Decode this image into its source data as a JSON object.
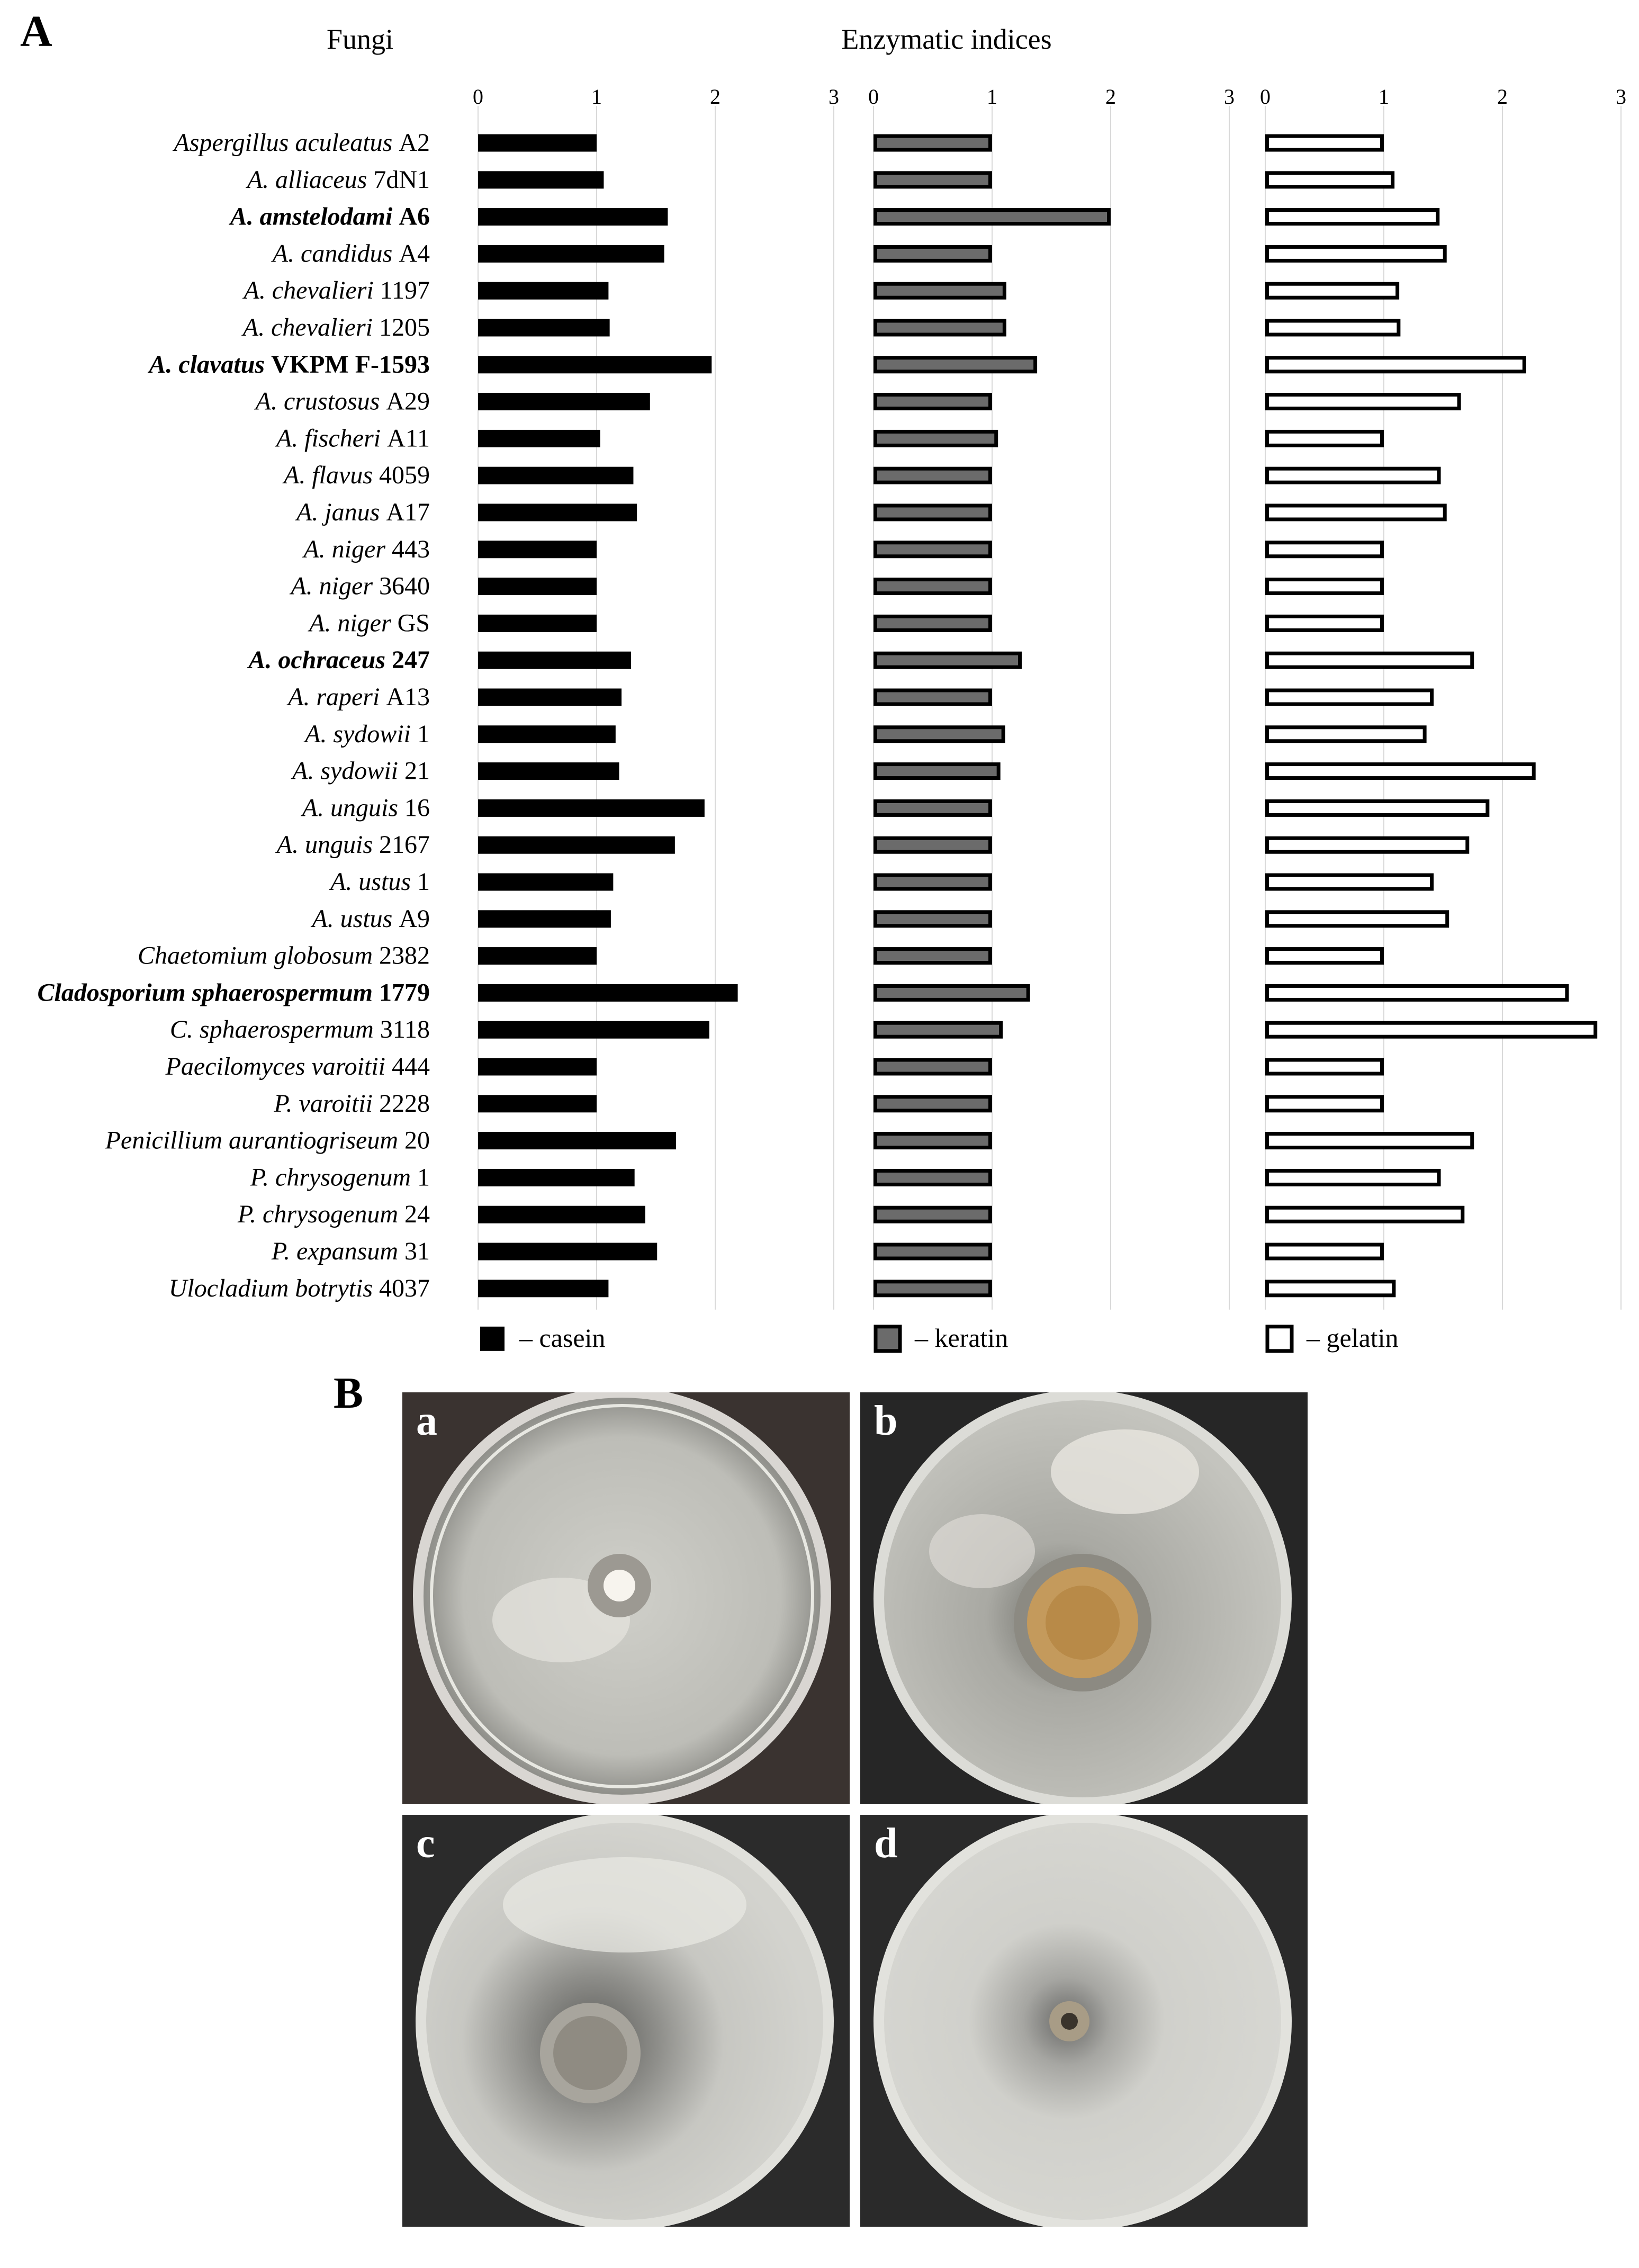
{
  "panel_a_label": "A",
  "panel_b_label": "B",
  "chart_data": {
    "type": "bar",
    "header_left": "Fungi",
    "header_center": "Enzymatic indices",
    "xlim": [
      0,
      3
    ],
    "x_ticks": [
      "0",
      "1",
      "2",
      "3"
    ],
    "grid": "vertical",
    "categories": [
      {
        "italic": "Aspergillus aculeatus",
        "strain": "A2",
        "bold": false
      },
      {
        "italic": "A. alliaceus",
        "strain": "7dN1",
        "bold": false
      },
      {
        "italic": "A. amstelodami",
        "strain": "A6",
        "bold": true
      },
      {
        "italic": "A. candidus",
        "strain": "A4",
        "bold": false
      },
      {
        "italic": "A. chevalieri",
        "strain": "1197",
        "bold": false
      },
      {
        "italic": "A. chevalieri",
        "strain": "1205",
        "bold": false
      },
      {
        "italic": "A. clavatus",
        "strain": "VKPM F-1593",
        "bold": true
      },
      {
        "italic": "A. crustosus",
        "strain": "A29",
        "bold": false
      },
      {
        "italic": "A. fischeri",
        "strain": "A11",
        "bold": false
      },
      {
        "italic": "A. flavus",
        "strain": "4059",
        "bold": false
      },
      {
        "italic": "A. janus",
        "strain": "A17",
        "bold": false
      },
      {
        "italic": "A. niger",
        "strain": "443",
        "bold": false
      },
      {
        "italic": "A. niger",
        "strain": "3640",
        "bold": false
      },
      {
        "italic": "A. niger",
        "strain": "GS",
        "bold": false
      },
      {
        "italic": "A. ochraceus",
        "strain": "247",
        "bold": true
      },
      {
        "italic": "A. raperi",
        "strain": "A13",
        "bold": false
      },
      {
        "italic": "A. sydowii",
        "strain": "1",
        "bold": false
      },
      {
        "italic": "A. sydowii",
        "strain": "21",
        "bold": false
      },
      {
        "italic": "A. unguis",
        "strain": "16",
        "bold": false
      },
      {
        "italic": "A. unguis",
        "strain": "2167",
        "bold": false
      },
      {
        "italic": "A. ustus",
        "strain": "1",
        "bold": false
      },
      {
        "italic": "A. ustus",
        "strain": "A9",
        "bold": false
      },
      {
        "italic": "Chaetomium globosum",
        "strain": "2382",
        "bold": false
      },
      {
        "italic": "Cladosporium sphaerospermum",
        "strain": "1779",
        "bold": true
      },
      {
        "italic": "C. sphaerospermum",
        "strain": "3118",
        "bold": false
      },
      {
        "italic": "Paecilomyces varoitii",
        "strain": "444",
        "bold": false
      },
      {
        "italic": "P. varoitii",
        "strain": "2228",
        "bold": false
      },
      {
        "italic": "Penicillium aurantiogriseum",
        "strain": "20",
        "bold": false
      },
      {
        "italic": "P. chrysogenum",
        "strain": "1",
        "bold": false
      },
      {
        "italic": "P. chrysogenum",
        "strain": "24",
        "bold": false
      },
      {
        "italic": "P. expansum",
        "strain": "31",
        "bold": false
      },
      {
        "italic": "Ulocladium botrytis",
        "strain": "4037",
        "bold": false
      }
    ],
    "series": [
      {
        "name": "casein",
        "legend_label": "– casein",
        "fill": "#000000",
        "stroke": "#000000",
        "values": [
          1.0,
          1.06,
          1.6,
          1.57,
          1.1,
          1.11,
          1.97,
          1.45,
          1.03,
          1.31,
          1.34,
          1.0,
          1.0,
          1.0,
          1.29,
          1.21,
          1.16,
          1.19,
          1.91,
          1.66,
          1.14,
          1.12,
          1.0,
          2.19,
          1.95,
          1.0,
          1.0,
          1.67,
          1.32,
          1.41,
          1.51,
          1.1
        ]
      },
      {
        "name": "keratin",
        "legend_label": "– keratin",
        "fill": "#6b6b6b",
        "stroke": "#000000",
        "values": [
          1.0,
          1.0,
          2.0,
          1.0,
          1.12,
          1.12,
          1.38,
          1.0,
          1.05,
          1.0,
          1.0,
          1.0,
          1.0,
          1.0,
          1.25,
          1.0,
          1.11,
          1.07,
          1.0,
          1.0,
          1.0,
          1.0,
          1.0,
          1.32,
          1.09,
          1.0,
          1.0,
          1.0,
          1.0,
          1.0,
          1.0,
          1.0
        ]
      },
      {
        "name": "gelatin",
        "legend_label": "– gelatin",
        "fill": "#ffffff",
        "stroke": "#000000",
        "values": [
          1.0,
          1.09,
          1.47,
          1.53,
          1.13,
          1.14,
          2.2,
          1.65,
          1.0,
          1.48,
          1.53,
          1.0,
          1.0,
          1.0,
          1.76,
          1.42,
          1.36,
          2.28,
          1.89,
          1.72,
          1.42,
          1.55,
          1.0,
          2.56,
          2.8,
          1.0,
          1.0,
          1.76,
          1.48,
          1.68,
          1.0,
          1.1
        ]
      }
    ]
  },
  "photos": [
    {
      "label": "a"
    },
    {
      "label": "b"
    },
    {
      "label": "c"
    },
    {
      "label": "d"
    }
  ]
}
